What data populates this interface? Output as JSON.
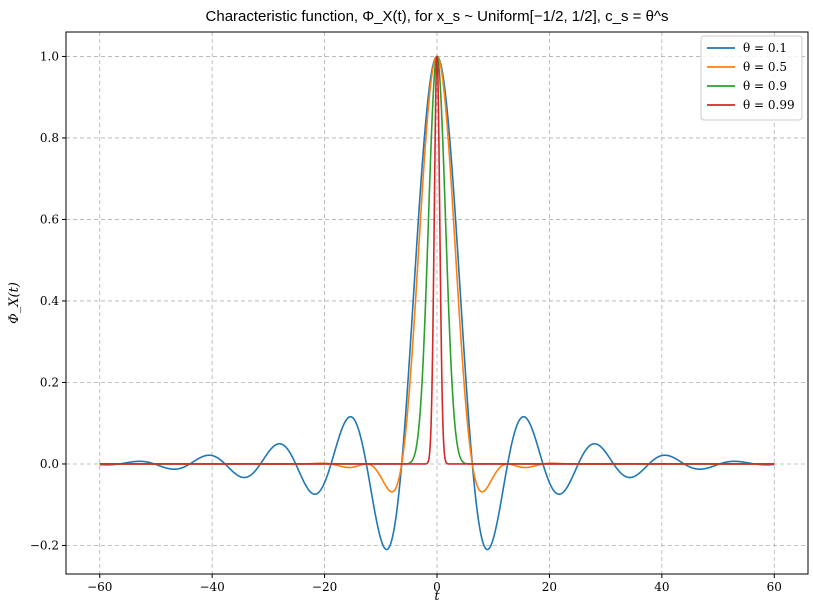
{
  "chart_data": {
    "type": "line",
    "title": "Characteristic function, Φ_X(t), for x_s ~ Uniform[−1/2, 1/2], c_s = θ^s",
    "xlabel": "t",
    "ylabel": "Φ_X(t)",
    "xlim": [
      -66,
      66
    ],
    "ylim": [
      -0.27,
      1.06
    ],
    "x_range": [
      -60,
      60
    ],
    "xticks": [
      -60,
      -40,
      -20,
      0,
      20,
      40,
      60
    ],
    "xtick_labels": [
      "−60",
      "−40",
      "−20",
      "0",
      "20",
      "40",
      "60"
    ],
    "yticks": [
      -0.2,
      0.0,
      0.2,
      0.4,
      0.6,
      0.8,
      1.0
    ],
    "ytick_labels": [
      "−0.2",
      "0.0",
      "0.2",
      "0.4",
      "0.6",
      "0.8",
      "1.0"
    ],
    "grid": true,
    "legend_position": "top-right",
    "series": [
      {
        "name": "θ = 0.1",
        "theta": 0.1,
        "color": "#1f77b4"
      },
      {
        "name": "θ = 0.5",
        "theta": 0.5,
        "color": "#ff7f0e"
      },
      {
        "name": "θ = 0.9",
        "theta": 0.9,
        "color": "#2ca02c"
      },
      {
        "name": "θ = 0.99",
        "theta": 0.99,
        "color": "#d62728"
      }
    ]
  }
}
